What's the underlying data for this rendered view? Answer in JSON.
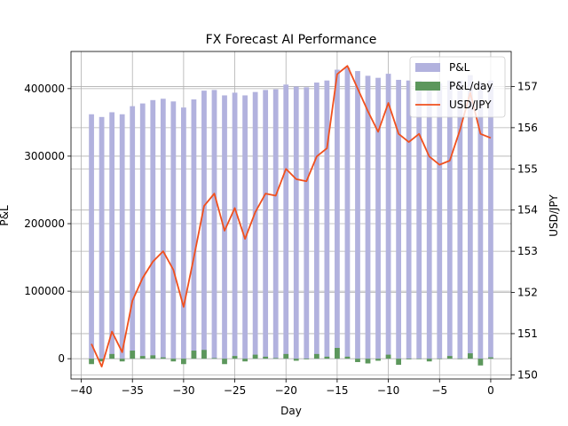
{
  "chart_data": {
    "type": "bar",
    "title": "FX Forecast AI Performance",
    "xlabel": "Day",
    "ylabel": "P&L",
    "y2label": "USD/JPY",
    "xlim": [
      -41,
      2
    ],
    "ylim": [
      -30000,
      455000
    ],
    "y2lim": [
      149.9,
      157.85
    ],
    "x_ticks": [
      -40,
      -35,
      -30,
      -25,
      -20,
      -15,
      -10,
      -5,
      0
    ],
    "y_ticks": [
      0,
      100000,
      200000,
      300000,
      400000
    ],
    "y2_ticks": [
      150,
      151,
      152,
      153,
      154,
      155,
      156,
      157
    ],
    "grid": true,
    "legend_position": "top-right",
    "x": [
      -39,
      -38,
      -37,
      -36,
      -35,
      -34,
      -33,
      -32,
      -31,
      -30,
      -29,
      -28,
      -27,
      -26,
      -25,
      -24,
      -23,
      -22,
      -21,
      -20,
      -19,
      -18,
      -17,
      -16,
      -15,
      -14,
      -13,
      -12,
      -11,
      -10,
      -9,
      -8,
      -7,
      -6,
      -5,
      -4,
      -3,
      -2,
      -1,
      0
    ],
    "series": [
      {
        "name": "P&L",
        "kind": "bar",
        "axis": "left",
        "color": "#b2b2de",
        "values": [
          362000,
          358000,
          365000,
          362000,
          374000,
          378000,
          383000,
          385000,
          381000,
          372000,
          384000,
          397000,
          398000,
          390000,
          394000,
          390000,
          395000,
          398000,
          399000,
          406000,
          403000,
          402000,
          409000,
          412000,
          428000,
          431000,
          426000,
          419000,
          416000,
          422000,
          413000,
          412000,
          412000,
          408000,
          408000,
          412000,
          412000,
          420000,
          410000,
          412000
        ]
      },
      {
        "name": "P&L/day",
        "kind": "bar",
        "axis": "left",
        "color": "#5c975c",
        "values": [
          -8000,
          -4000,
          7000,
          -4000,
          12000,
          4000,
          5000,
          2000,
          -4000,
          -8000,
          12000,
          13000,
          1000,
          -8000,
          4000,
          -4000,
          6000,
          3000,
          1000,
          7000,
          -3000,
          -1000,
          7000,
          3000,
          16000,
          3000,
          -5000,
          -7000,
          -3000,
          6000,
          -9000,
          -1000,
          0,
          -4000,
          0,
          4000,
          0,
          8000,
          -10000,
          2000
        ]
      },
      {
        "name": "USD/JPY",
        "kind": "line",
        "axis": "right",
        "color": "#f0501e",
        "values": [
          150.75,
          150.2,
          151.05,
          150.55,
          151.8,
          152.35,
          152.75,
          153.0,
          152.55,
          151.65,
          152.85,
          154.1,
          154.4,
          153.5,
          154.05,
          153.3,
          153.95,
          154.4,
          154.35,
          155.0,
          154.75,
          154.7,
          155.3,
          155.5,
          157.3,
          157.5,
          156.95,
          156.4,
          155.9,
          156.6,
          155.85,
          155.65,
          155.85,
          155.3,
          155.1,
          155.2,
          155.95,
          156.85,
          155.85,
          155.75
        ]
      }
    ]
  }
}
